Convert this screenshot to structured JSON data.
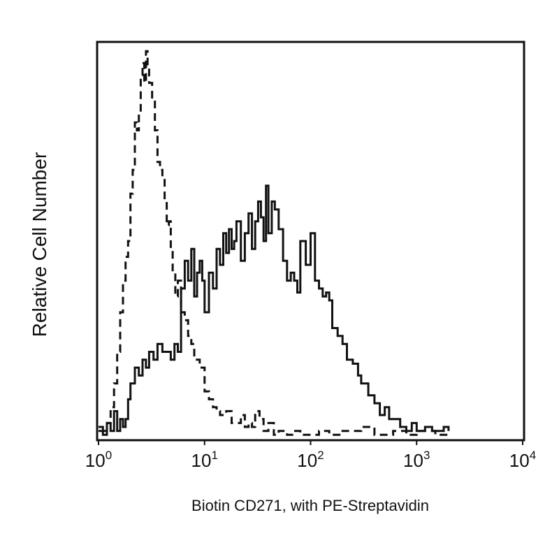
{
  "chart_data": {
    "type": "line",
    "title": "",
    "xlabel": "Biotin CD271, with PE-Streptavidin",
    "ylabel": "Relative Cell Number",
    "x_scale": "log",
    "xlim": [
      1,
      10000
    ],
    "ylim": [
      0,
      100
    ],
    "grid": false,
    "x_tick_labels": [
      {
        "base": "10",
        "exp": "0",
        "value": 1
      },
      {
        "base": "10",
        "exp": "1",
        "value": 10
      },
      {
        "base": "10",
        "exp": "2",
        "value": 100
      },
      {
        "base": "10",
        "exp": "3",
        "value": 1000
      },
      {
        "base": "10",
        "exp": "4",
        "value": 10000
      }
    ],
    "series": [
      {
        "style": "dashed",
        "color": "#111111",
        "x": [
          1.0,
          1.1,
          1.2,
          1.3,
          1.4,
          1.5,
          1.6,
          1.7,
          1.8,
          1.9,
          2.0,
          2.1,
          2.2,
          2.3,
          2.4,
          2.5,
          2.6,
          2.7,
          2.8,
          2.9,
          3.0,
          3.2,
          3.4,
          3.6,
          3.8,
          4.0,
          4.2,
          4.4,
          4.6,
          4.8,
          5.0,
          5.3,
          5.6,
          6.0,
          6.5,
          7.0,
          7.5,
          8.0,
          9.0,
          10,
          11,
          12,
          13,
          14,
          16,
          18,
          20,
          22,
          24,
          26,
          28,
          30,
          33,
          36,
          40,
          45,
          50,
          60,
          70,
          80,
          100,
          120,
          150,
          200,
          300,
          400,
          600,
          800,
          1000,
          1500,
          2000
        ],
        "values": [
          2,
          2,
          4,
          8,
          14,
          22,
          32,
          40,
          46,
          50,
          62,
          68,
          80,
          78,
          82,
          92,
          95,
          90,
          98,
          94,
          90,
          86,
          78,
          70,
          68,
          66,
          60,
          54,
          55,
          48,
          42,
          36,
          40,
          32,
          30,
          26,
          24,
          20,
          18,
          12,
          10,
          8,
          7,
          6,
          7,
          4,
          4,
          6,
          3,
          4,
          3,
          7,
          5,
          2,
          4,
          1,
          2,
          1,
          2,
          1,
          1,
          2,
          1,
          2,
          3,
          1,
          2,
          1,
          2,
          1,
          1
        ]
      },
      {
        "style": "solid",
        "color": "#111111",
        "x": [
          1.0,
          1.1,
          1.2,
          1.3,
          1.4,
          1.5,
          1.6,
          1.7,
          1.8,
          1.9,
          2.0,
          2.2,
          2.4,
          2.6,
          2.8,
          3.0,
          3.3,
          3.6,
          4.0,
          4.4,
          4.8,
          5.2,
          5.6,
          6.0,
          6.5,
          7.0,
          7.5,
          8.0,
          8.5,
          9.0,
          9.5,
          10,
          11,
          12,
          13,
          14,
          15,
          16,
          17,
          18,
          19,
          20,
          22,
          24,
          26,
          28,
          30,
          32,
          34,
          36,
          38,
          40,
          43,
          46,
          50,
          55,
          60,
          65,
          70,
          75,
          80,
          90,
          100,
          110,
          120,
          130,
          140,
          150,
          160,
          180,
          200,
          220,
          250,
          280,
          300,
          350,
          400,
          450,
          500,
          550,
          600,
          700,
          800,
          900,
          1000,
          1200,
          1400,
          1600,
          1800,
          2000
        ],
        "values": [
          3,
          1,
          4,
          2,
          7,
          2,
          5,
          3,
          5,
          10,
          14,
          18,
          16,
          20,
          18,
          22,
          20,
          24,
          22,
          22,
          20,
          24,
          22,
          38,
          45,
          40,
          48,
          36,
          42,
          45,
          40,
          32,
          42,
          38,
          48,
          44,
          52,
          47,
          53,
          48,
          50,
          55,
          45,
          52,
          57,
          48,
          55,
          60,
          56,
          50,
          64,
          52,
          60,
          58,
          53,
          45,
          40,
          42,
          40,
          37,
          50,
          44,
          52,
          40,
          38,
          36,
          37,
          35,
          28,
          26,
          24,
          20,
          19,
          16,
          14,
          11,
          9,
          6,
          8,
          5,
          5,
          3,
          2,
          4,
          2,
          3,
          2,
          2,
          3,
          2
        ]
      }
    ]
  }
}
